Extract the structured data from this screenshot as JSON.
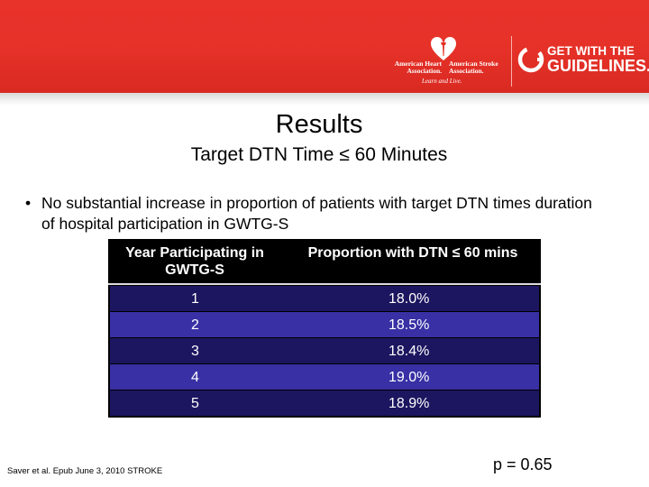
{
  "header": {
    "aha_left": "American Heart\nAssociation.",
    "aha_right": "American Stroke\nAssociation.",
    "tagline": "Learn and Live.",
    "gwtg_line1": "GET WITH THE",
    "gwtg_line2": "GUIDELINES."
  },
  "slide": {
    "title": "Results",
    "subtitle": "Target DTN Time ≤ 60 Minutes",
    "bullet": "No substantial increase in proportion of patients with target DTN times duration of hospital participation in GWTG-S",
    "bullet_symbol": "•"
  },
  "table": {
    "headers": [
      "Year Participating in GWTG-S",
      "Proportion with DTN  ≤ 60 mins"
    ],
    "rows": [
      {
        "year": "1",
        "value": "18.0%"
      },
      {
        "year": "2",
        "value": "18.5%"
      },
      {
        "year": "3",
        "value": "18.4%"
      },
      {
        "year": "4",
        "value": "19.0%"
      },
      {
        "year": "5",
        "value": "18.9%"
      }
    ]
  },
  "footer": {
    "citation": "Saver et al. Epub June 3, 2010 STROKE",
    "pvalue": "p = 0.65"
  },
  "colors": {
    "banner": "#e53128",
    "row_dark": "#1c1660",
    "row_light": "#3830a4"
  }
}
